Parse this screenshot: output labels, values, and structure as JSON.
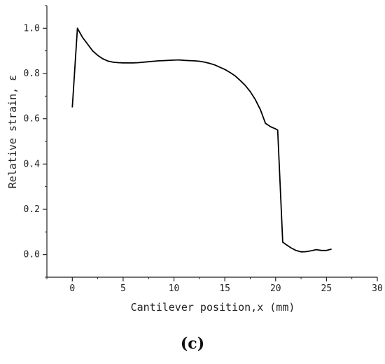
{
  "panel_label": "(c)",
  "chart_data": {
    "type": "line",
    "xlabel": "Cantilever position,x (mm)",
    "ylabel": "Relative strain, ε",
    "xlim": [
      -2.5,
      30
    ],
    "ylim": [
      -0.1,
      1.1
    ],
    "xticks": [
      0,
      5,
      10,
      15,
      20,
      25,
      30
    ],
    "yticks": [
      0.0,
      0.2,
      0.4,
      0.6,
      0.8,
      1.0
    ],
    "xtick_labels": [
      "0",
      "5",
      "10",
      "15",
      "20",
      "25",
      "30"
    ],
    "ytick_labels": [
      "0.0",
      "0.2",
      "0.4",
      "0.6",
      "0.8",
      "1.0"
    ],
    "grid": false,
    "series": [
      {
        "color": "#000000",
        "x": [
          0,
          0.5,
          1,
          1.5,
          2,
          2.5,
          3,
          3.5,
          4,
          4.5,
          5,
          5.5,
          6,
          6.5,
          7,
          7.5,
          8,
          8.5,
          9,
          9.5,
          10,
          10.5,
          11,
          11.5,
          12,
          12.5,
          13,
          13.5,
          14,
          14.5,
          15,
          15.5,
          16,
          16.5,
          17,
          17.5,
          18,
          18.5,
          19,
          19.5,
          20,
          20.2,
          20.7,
          21,
          21.5,
          22,
          22.5,
          23,
          23.5,
          24,
          24.5,
          25,
          25.5
        ],
        "y": [
          0.65,
          1.0,
          0.96,
          0.93,
          0.9,
          0.88,
          0.865,
          0.855,
          0.85,
          0.848,
          0.847,
          0.847,
          0.847,
          0.848,
          0.85,
          0.852,
          0.854,
          0.856,
          0.857,
          0.858,
          0.859,
          0.86,
          0.858,
          0.857,
          0.856,
          0.854,
          0.85,
          0.845,
          0.838,
          0.828,
          0.818,
          0.805,
          0.79,
          0.77,
          0.748,
          0.72,
          0.685,
          0.64,
          0.58,
          0.565,
          0.555,
          0.55,
          0.055,
          0.045,
          0.03,
          0.018,
          0.012,
          0.013,
          0.017,
          0.022,
          0.018,
          0.018,
          0.024
        ]
      }
    ]
  }
}
